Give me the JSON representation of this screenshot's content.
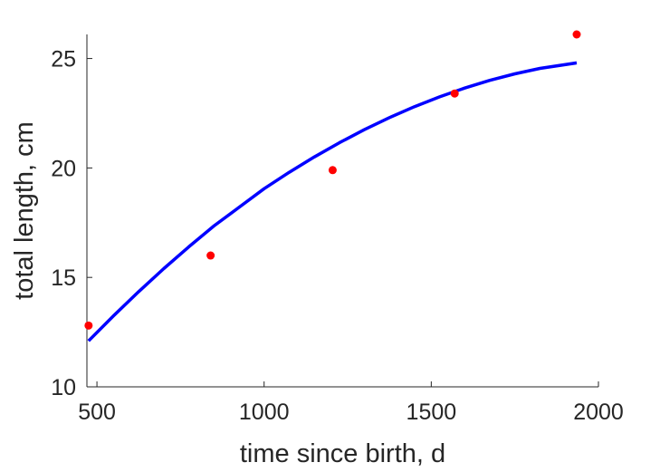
{
  "chart_data": {
    "type": "scatter",
    "title": "",
    "xlabel": "time since birth, d",
    "ylabel": "total length, cm",
    "xlim": [
      470,
      2000
    ],
    "ylim": [
      10,
      26.1
    ],
    "xticks": [
      500,
      1000,
      1500,
      2000
    ],
    "yticks": [
      10,
      15,
      20,
      25
    ],
    "grid": false,
    "legend": "none",
    "series": [
      {
        "kind": "points",
        "color": "#ff0000",
        "x": [
          475,
          840,
          1205,
          1570,
          1935
        ],
        "y": [
          12.8,
          16.0,
          19.9,
          23.4,
          26.1
        ]
      },
      {
        "kind": "line",
        "color": "#0000ff",
        "x": [
          475,
          550,
          625,
          700,
          775,
          850,
          925,
          1000,
          1075,
          1150,
          1225,
          1300,
          1375,
          1450,
          1525,
          1600,
          1675,
          1750,
          1825,
          1935
        ],
        "y": [
          12.1,
          13.25,
          14.35,
          15.4,
          16.4,
          17.35,
          18.2,
          19.05,
          19.8,
          20.5,
          21.15,
          21.75,
          22.3,
          22.8,
          23.25,
          23.65,
          24.0,
          24.3,
          24.55,
          24.8
        ]
      }
    ]
  }
}
